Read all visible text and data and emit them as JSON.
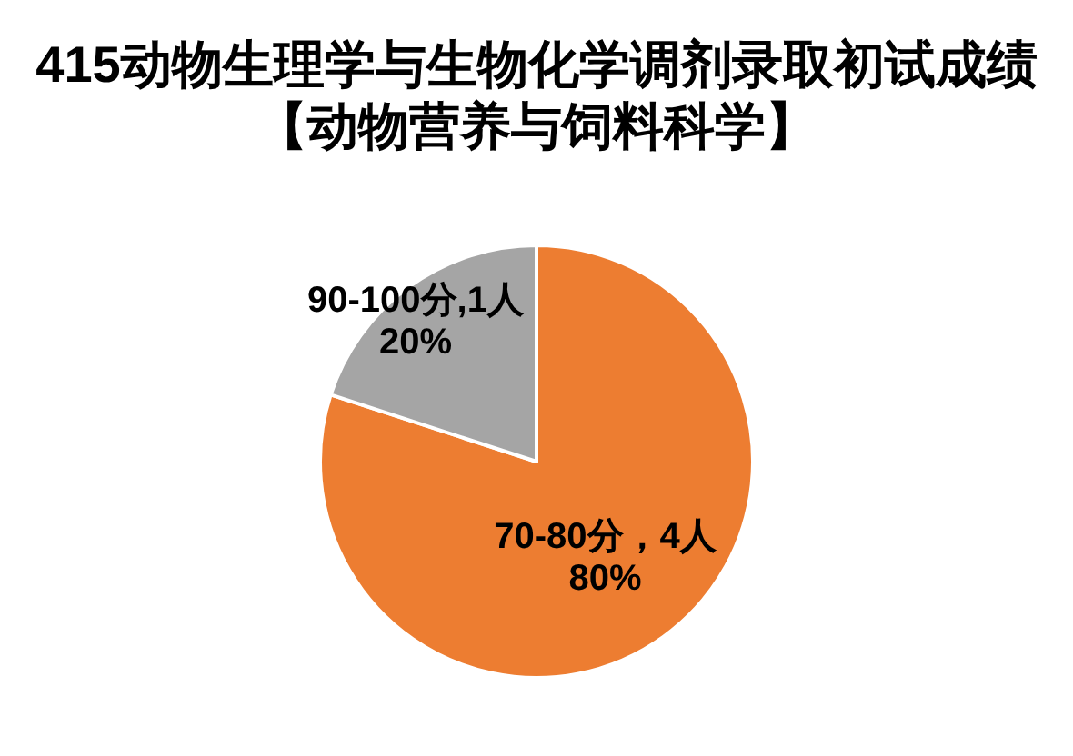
{
  "chart_data": {
    "type": "pie",
    "title": "415动物生理学与生物化学调剂录取初试成绩",
    "subtitle": "【动物营养与饲料科学】",
    "categories": [
      "70-80分，4人",
      "90-100分,1人"
    ],
    "values": [
      80,
      20
    ],
    "value_labels": [
      "80%",
      "20%"
    ],
    "colors": [
      "#ed7d31",
      "#a5a5a5"
    ]
  }
}
